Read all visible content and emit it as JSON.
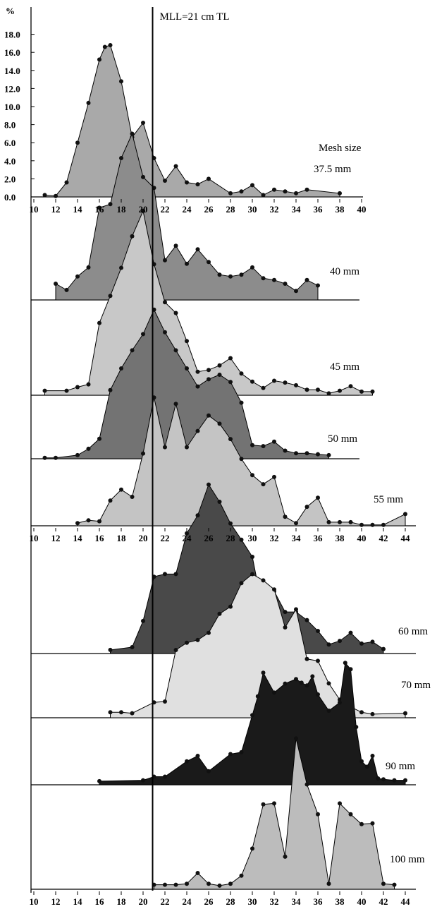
{
  "chart_data": {
    "type": "area",
    "ylabel": "%",
    "ylim": [
      0,
      18
    ],
    "yticks": [
      "0.0",
      "2.0",
      "4.0",
      "6.0",
      "8.0",
      "10.0",
      "12.0",
      "14.0",
      "16.0",
      "18.0"
    ],
    "xticks_top": [
      "10",
      "12",
      "14",
      "16",
      "18",
      "20",
      "22",
      "24",
      "26",
      "28",
      "30",
      "32",
      "34",
      "36",
      "38",
      "40"
    ],
    "xticks_mid": [
      "10",
      "12",
      "14",
      "16",
      "18",
      "20",
      "22",
      "24",
      "26",
      "28",
      "30",
      "32",
      "34",
      "36",
      "38",
      "40",
      "42",
      "44"
    ],
    "xticks_bottom": [
      "10",
      "12",
      "14",
      "16",
      "18",
      "20",
      "22",
      "24",
      "26",
      "28",
      "30",
      "32",
      "34",
      "36",
      "38",
      "40",
      "42",
      "44"
    ],
    "reference_line": {
      "x": 21,
      "label": "MLL=21 cm TL"
    },
    "series_caption": "Mesh size",
    "series": [
      {
        "name": "37.5 mm",
        "color": "#a9a9a9",
        "points": [
          [
            11,
            0.2
          ],
          [
            12,
            0.1
          ],
          [
            13,
            1.6
          ],
          [
            14,
            6.0
          ],
          [
            15,
            10.4
          ],
          [
            16,
            15.2
          ],
          [
            16.5,
            16.6
          ],
          [
            17,
            16.8
          ],
          [
            18,
            12.8
          ],
          [
            19,
            6.6
          ],
          [
            20,
            8.2
          ],
          [
            21,
            4.3
          ],
          [
            22,
            1.8
          ],
          [
            23,
            3.4
          ],
          [
            24,
            1.6
          ],
          [
            25,
            1.4
          ],
          [
            26,
            2.0
          ],
          [
            28,
            0.4
          ],
          [
            29,
            0.6
          ],
          [
            30,
            1.3
          ],
          [
            31,
            0.2
          ],
          [
            32,
            0.8
          ],
          [
            33,
            0.6
          ],
          [
            34,
            0.4
          ],
          [
            35,
            0.8
          ],
          [
            38,
            0.4
          ]
        ]
      },
      {
        "name": "40 mm",
        "color": "#8c8c8c",
        "points": [
          [
            12,
            1.8
          ],
          [
            13,
            1.1
          ],
          [
            14,
            2.6
          ],
          [
            15,
            3.6
          ],
          [
            16,
            10.2
          ],
          [
            17,
            10.6
          ],
          [
            18,
            15.7
          ],
          [
            19,
            18.4
          ],
          [
            20,
            13.6
          ],
          [
            21,
            12.4
          ],
          [
            22,
            4.4
          ],
          [
            23,
            6.0
          ],
          [
            24,
            4.0
          ],
          [
            25,
            5.6
          ],
          [
            26,
            4.2
          ],
          [
            27,
            2.8
          ],
          [
            28,
            2.6
          ],
          [
            29,
            2.8
          ],
          [
            30,
            3.6
          ],
          [
            31,
            2.4
          ],
          [
            32,
            2.2
          ],
          [
            33,
            1.8
          ],
          [
            34,
            1.0
          ],
          [
            35,
            2.2
          ],
          [
            36,
            1.6
          ]
        ]
      },
      {
        "name": "45 mm",
        "color": "#c8c8c8",
        "points": [
          [
            11,
            0.5
          ],
          [
            13,
            0.5
          ],
          [
            14,
            0.9
          ],
          [
            15,
            1.2
          ],
          [
            16,
            8.0
          ],
          [
            17,
            11.0
          ],
          [
            18,
            14.1
          ],
          [
            19,
            17.6
          ],
          [
            20,
            20.4
          ],
          [
            21,
            14.5
          ],
          [
            22,
            10.3
          ],
          [
            23,
            9.1
          ],
          [
            24,
            6.0
          ],
          [
            25,
            2.6
          ],
          [
            26,
            2.8
          ],
          [
            27,
            3.3
          ],
          [
            28,
            4.1
          ],
          [
            29,
            2.4
          ],
          [
            30,
            1.5
          ],
          [
            31,
            0.8
          ],
          [
            32,
            1.6
          ],
          [
            33,
            1.4
          ],
          [
            34,
            1.1
          ],
          [
            35,
            0.6
          ],
          [
            36,
            0.6
          ],
          [
            37,
            0.2
          ],
          [
            38,
            0.5
          ],
          [
            39,
            1.0
          ],
          [
            40,
            0.4
          ],
          [
            41,
            0.4
          ]
        ]
      },
      {
        "name": "50 mm",
        "color": "#737373",
        "points": [
          [
            11,
            0.1
          ],
          [
            12,
            0.1
          ],
          [
            14,
            0.4
          ],
          [
            15,
            1.1
          ],
          [
            16,
            2.2
          ],
          [
            17,
            7.6
          ],
          [
            18,
            10.0
          ],
          [
            19,
            12.0
          ],
          [
            20,
            13.8
          ],
          [
            21,
            16.5
          ],
          [
            22,
            14.0
          ],
          [
            23,
            12.0
          ],
          [
            24,
            10.0
          ],
          [
            25,
            8.0
          ],
          [
            26,
            8.8
          ],
          [
            27,
            9.3
          ],
          [
            28,
            8.5
          ],
          [
            29,
            6.2
          ],
          [
            30,
            1.5
          ],
          [
            31,
            1.4
          ],
          [
            32,
            1.9
          ],
          [
            33,
            0.9
          ],
          [
            34,
            0.6
          ],
          [
            35,
            0.6
          ],
          [
            36,
            0.5
          ],
          [
            37,
            0.4
          ]
        ]
      },
      {
        "name": "55 mm",
        "color": "#c4c4c4",
        "points": [
          [
            14,
            0.3
          ],
          [
            15,
            0.6
          ],
          [
            16,
            0.5
          ],
          [
            17,
            2.8
          ],
          [
            18,
            4.0
          ],
          [
            19,
            3.2
          ],
          [
            20,
            8.0
          ],
          [
            21,
            14.2
          ],
          [
            22,
            8.7
          ],
          [
            23,
            13.5
          ],
          [
            24,
            8.7
          ],
          [
            25,
            10.5
          ],
          [
            26,
            12.2
          ],
          [
            27,
            11.3
          ],
          [
            28,
            9.6
          ],
          [
            29,
            7.4
          ],
          [
            30,
            5.6
          ],
          [
            31,
            4.6
          ],
          [
            32,
            5.4
          ],
          [
            33,
            1.0
          ],
          [
            34,
            0.3
          ],
          [
            35,
            2.1
          ],
          [
            36,
            3.1
          ],
          [
            37,
            0.4
          ],
          [
            38,
            0.4
          ],
          [
            39,
            0.4
          ],
          [
            40,
            0.1
          ],
          [
            41,
            0.1
          ],
          [
            42,
            0.1
          ],
          [
            44,
            1.3
          ]
        ]
      },
      {
        "name": "60 mm",
        "color": "#494949",
        "points": [
          [
            17,
            0.4
          ],
          [
            19,
            0.7
          ],
          [
            20,
            3.6
          ],
          [
            21,
            8.5
          ],
          [
            22,
            8.8
          ],
          [
            23,
            8.8
          ],
          [
            24,
            13.3
          ],
          [
            25,
            15.3
          ],
          [
            26,
            18.7
          ],
          [
            27,
            16.8
          ],
          [
            28,
            14.4
          ],
          [
            29,
            12.6
          ],
          [
            30,
            10.7
          ],
          [
            31,
            4.6
          ],
          [
            32,
            6.9
          ],
          [
            33,
            4.6
          ],
          [
            34,
            4.6
          ],
          [
            35,
            3.7
          ],
          [
            36,
            2.5
          ],
          [
            37,
            1.0
          ],
          [
            38,
            1.4
          ],
          [
            39,
            2.3
          ],
          [
            40,
            1.1
          ],
          [
            41,
            1.3
          ],
          [
            42,
            0.5
          ]
        ]
      },
      {
        "name": "70 mm",
        "color": "#e0e0e0",
        "points": [
          [
            17,
            0.6
          ],
          [
            18,
            0.6
          ],
          [
            19,
            0.5
          ],
          [
            21,
            1.7
          ],
          [
            22,
            1.8
          ],
          [
            23,
            7.5
          ],
          [
            24,
            8.3
          ],
          [
            25,
            8.6
          ],
          [
            26,
            9.4
          ],
          [
            27,
            11.5
          ],
          [
            28,
            12.3
          ],
          [
            29,
            14.9
          ],
          [
            30,
            15.9
          ],
          [
            31,
            15.2
          ],
          [
            32,
            14.2
          ],
          [
            33,
            10.0
          ],
          [
            34,
            12.0
          ],
          [
            35,
            6.5
          ],
          [
            36,
            6.3
          ],
          [
            37,
            3.8
          ],
          [
            38,
            2.0
          ],
          [
            39,
            1.2
          ],
          [
            40,
            0.6
          ],
          [
            41,
            0.4
          ],
          [
            44,
            0.5
          ]
        ]
      },
      {
        "name": "90 mm",
        "color": "#1a1a1a",
        "points": [
          [
            16,
            0.4
          ],
          [
            20,
            0.5
          ],
          [
            21,
            0.9
          ],
          [
            22,
            0.9
          ],
          [
            24,
            2.6
          ],
          [
            25,
            3.2
          ],
          [
            26,
            1.5
          ],
          [
            28,
            3.4
          ],
          [
            29,
            3.6
          ],
          [
            30,
            7.7
          ],
          [
            30.5,
            9.8
          ],
          [
            31,
            12.4
          ],
          [
            32,
            10.2
          ],
          [
            33,
            11.2
          ],
          [
            34,
            11.7
          ],
          [
            34.5,
            11.3
          ],
          [
            35,
            11.0
          ],
          [
            35.5,
            12.0
          ],
          [
            36,
            10.0
          ],
          [
            37,
            8.2
          ],
          [
            38,
            9.1
          ],
          [
            38.5,
            13.5
          ],
          [
            39,
            12.8
          ],
          [
            39.5,
            6.4
          ],
          [
            40,
            2.6
          ],
          [
            40.5,
            2.0
          ],
          [
            41,
            3.2
          ],
          [
            41.5,
            0.7
          ],
          [
            42,
            0.6
          ],
          [
            43,
            0.5
          ],
          [
            44,
            0.5
          ]
        ]
      },
      {
        "name": "100 mm",
        "color": "#bcbcbc",
        "points": [
          [
            21,
            0.5
          ],
          [
            22,
            0.5
          ],
          [
            23,
            0.5
          ],
          [
            24,
            0.6
          ],
          [
            25,
            1.8
          ],
          [
            26,
            0.6
          ],
          [
            27,
            0.4
          ],
          [
            28,
            0.6
          ],
          [
            29,
            1.5
          ],
          [
            30,
            4.5
          ],
          [
            31,
            9.4
          ],
          [
            32,
            9.5
          ],
          [
            33,
            3.6
          ],
          [
            34,
            16.7
          ],
          [
            35,
            11.6
          ],
          [
            36,
            8.3
          ],
          [
            37,
            0.6
          ],
          [
            38,
            9.5
          ],
          [
            39,
            8.3
          ],
          [
            40,
            7.2
          ],
          [
            41,
            7.3
          ],
          [
            42,
            0.6
          ],
          [
            43,
            0.5
          ]
        ]
      }
    ]
  }
}
